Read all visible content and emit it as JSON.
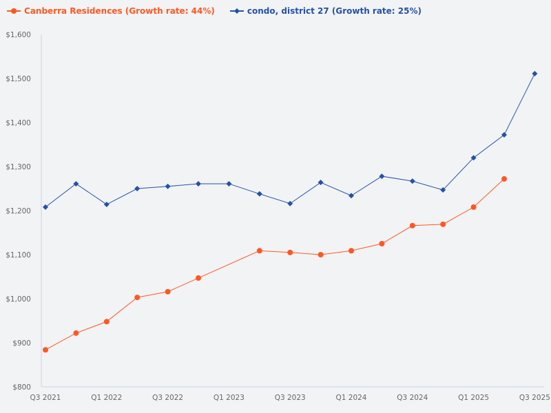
{
  "chart_data": {
    "type": "line",
    "title": "",
    "xlabel": "",
    "ylabel": "",
    "ylim": [
      800,
      1600
    ],
    "yticks": [
      "$800",
      "$900",
      "$1,000",
      "$1,100",
      "$1,200",
      "$1,300",
      "$1,400",
      "$1,500",
      "$1,600"
    ],
    "ytick_values": [
      800,
      900,
      1000,
      1100,
      1200,
      1300,
      1400,
      1500,
      1600
    ],
    "categories": [
      "Q3 2021",
      "Q4 2021",
      "Q1 2022",
      "Q2 2022",
      "Q3 2022",
      "Q4 2022",
      "Q1 2023",
      "Q2 2023",
      "Q3 2023",
      "Q4 2023",
      "Q1 2024",
      "Q2 2024",
      "Q3 2024",
      "Q4 2024",
      "Q1 2025",
      "Q2 2025",
      "Q3 2025"
    ],
    "xtick_labels": [
      "Q3 2021",
      "Q1 2022",
      "Q3 2022",
      "Q1 2023",
      "Q3 2023",
      "Q1 2024",
      "Q3 2024",
      "Q1 2025",
      "Q3 2025"
    ],
    "grid": false,
    "legend_position": "top-left",
    "series": [
      {
        "name": "Canberra Residences (Growth rate: 44%)",
        "color": "#ff5722",
        "marker": "circle",
        "values": [
          884,
          922,
          948,
          1003,
          1016,
          1047,
          null,
          1109,
          1105,
          1100,
          1109,
          1125,
          1166,
          1169,
          1208,
          1272,
          null
        ]
      },
      {
        "name": "condo, district 27 (Growth rate: 25%)",
        "color": "#2352a5",
        "marker": "diamond",
        "values": [
          1208,
          1261,
          1214,
          1250,
          1255,
          1261,
          1261,
          1238,
          1216,
          1264,
          1234,
          1278,
          1267,
          1247,
          1320,
          1372,
          1511
        ]
      }
    ]
  }
}
